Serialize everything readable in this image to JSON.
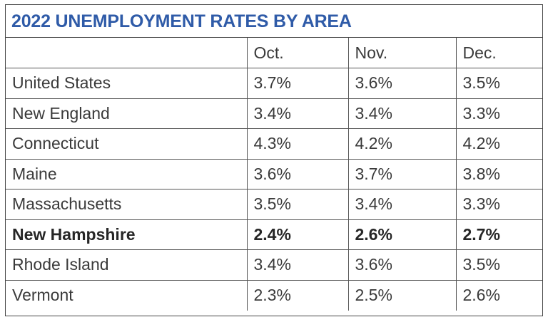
{
  "title": "2022 UNEMPLOYMENT RATES BY AREA",
  "columns": [
    "",
    "Oct.",
    "Nov.",
    "Dec."
  ],
  "rows": [
    {
      "area": "United States",
      "values": [
        "3.7%",
        "3.6%",
        "3.5%"
      ]
    },
    {
      "area": "New England",
      "values": [
        "3.4%",
        "3.4%",
        "3.3%"
      ]
    },
    {
      "area": "Connecticut",
      "values": [
        "4.3%",
        "4.2%",
        "4.2%"
      ]
    },
    {
      "area": "Maine",
      "values": [
        "3.6%",
        "3.7%",
        "3.8%"
      ]
    },
    {
      "area": "Massachusetts",
      "values": [
        "3.5%",
        "3.4%",
        "3.3%"
      ]
    },
    {
      "area": "New Hampshire",
      "values": [
        "2.4%",
        "2.6%",
        "2.7%"
      ],
      "emphasized": true
    },
    {
      "area": "Rhode Island",
      "values": [
        "3.4%",
        "3.6%",
        "3.5%"
      ]
    },
    {
      "area": "Vermont",
      "values": [
        "2.3%",
        "2.5%",
        "2.6%"
      ]
    }
  ],
  "colors": {
    "title": "#2f5ba8",
    "text": "#3a3a3a",
    "border": "#555555"
  }
}
